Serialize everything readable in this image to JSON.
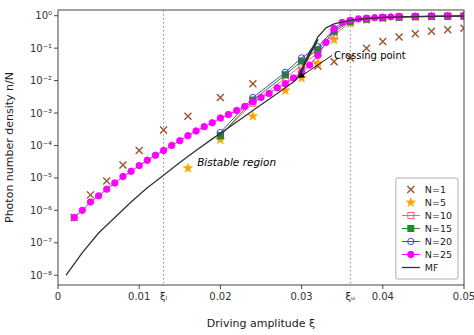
{
  "chart_data": {
    "type": "line",
    "xlabel": "Driving amplitude ξ",
    "ylabel": "Photon number density n/N",
    "xlim": [
      0,
      0.05
    ],
    "ylim": [
      5e-09,
      1.5
    ],
    "xticks": [
      0,
      0.01,
      0.02,
      0.03,
      0.04,
      0.05
    ],
    "yticks": [
      {
        "value": 1e-08,
        "label": "10⁻⁸"
      },
      {
        "value": 1e-07,
        "label": "10⁻⁷"
      },
      {
        "value": 1e-06,
        "label": "10⁻⁶"
      },
      {
        "value": 1e-05,
        "label": "10⁻⁵"
      },
      {
        "value": 0.0001,
        "label": "10⁻⁴"
      },
      {
        "value": 0.001,
        "label": "10⁻³"
      },
      {
        "value": 0.01,
        "label": "10⁻²"
      },
      {
        "value": 0.1,
        "label": "10⁻¹"
      },
      {
        "value": 1,
        "label": "10⁰"
      }
    ],
    "log": "y",
    "grid": false,
    "legend": "lower right",
    "series": [
      {
        "name": "N=1",
        "color": "#A0522D",
        "marker": "x",
        "line_style": "none",
        "x": [
          0.002,
          0.004,
          0.006,
          0.008,
          0.01,
          0.013,
          0.016,
          0.02,
          0.024,
          0.028,
          0.03,
          0.032,
          0.034,
          0.036,
          0.038,
          0.04,
          0.042,
          0.044,
          0.046,
          0.048,
          0.05
        ],
        "values": [
          6e-07,
          3e-06,
          8e-06,
          2.5e-05,
          7e-05,
          0.0003,
          0.0008,
          0.003,
          0.008,
          0.015,
          0.02,
          0.028,
          0.038,
          0.05,
          0.1,
          0.16,
          0.22,
          0.28,
          0.33,
          0.37,
          0.41
        ]
      },
      {
        "name": "N=5",
        "color": "#FFA500",
        "marker": "star",
        "line_style": "none",
        "x": [
          0.016,
          0.02,
          0.024,
          0.028,
          0.03,
          0.032,
          0.034,
          0.036,
          0.038,
          0.04,
          0.042,
          0.044,
          0.046,
          0.048,
          0.05
        ],
        "values": [
          2e-05,
          0.00015,
          0.0008,
          0.005,
          0.012,
          0.035,
          0.18,
          0.58,
          0.74,
          0.83,
          0.89,
          0.92,
          0.94,
          0.96,
          0.97
        ]
      },
      {
        "name": "N=10",
        "color": "#FF6666",
        "marker": "square-open",
        "line_style": "solid",
        "x": [
          0.02,
          0.024,
          0.028,
          0.03,
          0.032,
          0.034,
          0.036,
          0.038,
          0.04,
          0.042,
          0.044,
          0.046,
          0.048,
          0.05
        ],
        "values": [
          0.0002,
          0.002,
          0.012,
          0.03,
          0.07,
          0.25,
          0.63,
          0.77,
          0.86,
          0.91,
          0.93,
          0.95,
          0.97,
          0.98
        ]
      },
      {
        "name": "N=15",
        "color": "#228B22",
        "marker": "square",
        "line_style": "solid",
        "x": [
          0.02,
          0.024,
          0.028,
          0.03,
          0.032,
          0.034,
          0.036,
          0.038,
          0.04,
          0.042,
          0.044,
          0.046,
          0.048,
          0.05
        ],
        "values": [
          0.0002,
          0.0025,
          0.015,
          0.04,
          0.09,
          0.32,
          0.67,
          0.79,
          0.87,
          0.91,
          0.94,
          0.96,
          0.97,
          0.98
        ]
      },
      {
        "name": "N=20",
        "color": "#4444CC",
        "marker": "circle-open",
        "line_style": "solid",
        "x": [
          0.02,
          0.024,
          0.028,
          0.03,
          0.032,
          0.034,
          0.036,
          0.038,
          0.04,
          0.042,
          0.044,
          0.046,
          0.048,
          0.05
        ],
        "values": [
          0.00025,
          0.003,
          0.018,
          0.05,
          0.11,
          0.38,
          0.7,
          0.81,
          0.88,
          0.92,
          0.94,
          0.96,
          0.97,
          0.98
        ]
      },
      {
        "name": "N=25",
        "color": "#FF00FF",
        "marker": "circle",
        "line_style": "solid",
        "x": [
          0.002,
          0.003,
          0.004,
          0.005,
          0.006,
          0.007,
          0.008,
          0.009,
          0.01,
          0.011,
          0.012,
          0.013,
          0.014,
          0.015,
          0.016,
          0.017,
          0.018,
          0.019,
          0.02,
          0.021,
          0.022,
          0.023,
          0.024,
          0.025,
          0.026,
          0.027,
          0.028,
          0.029,
          0.03,
          0.031,
          0.032,
          0.033,
          0.034,
          0.035,
          0.036,
          0.037,
          0.038,
          0.039,
          0.04,
          0.041,
          0.042,
          0.044,
          0.046,
          0.048,
          0.05
        ],
        "values": [
          6e-07,
          1e-06,
          1.8e-06,
          2.8e-06,
          4.5e-06,
          7e-06,
          1.1e-05,
          1.6e-05,
          2.4e-05,
          3.5e-05,
          5e-05,
          7e-05,
          0.0001,
          0.00014,
          0.0002,
          0.00028,
          0.00038,
          0.0005,
          0.0007,
          0.0009,
          0.0012,
          0.0016,
          0.0022,
          0.003,
          0.004,
          0.006,
          0.008,
          0.012,
          0.018,
          0.03,
          0.06,
          0.15,
          0.4,
          0.62,
          0.72,
          0.8,
          0.84,
          0.87,
          0.9,
          0.92,
          0.93,
          0.95,
          0.96,
          0.97,
          0.98
        ]
      },
      {
        "name": "MF",
        "color": "#333333",
        "marker": "none",
        "line_style": "solid",
        "x": [
          0.001,
          0.003,
          0.005,
          0.007,
          0.009,
          0.011,
          0.013,
          0.015,
          0.017,
          0.019,
          0.021,
          0.023,
          0.025,
          0.027,
          0.029,
          0.0295,
          0.0295,
          0.031,
          0.032,
          0.0295,
          0.0295,
          0.03,
          0.031,
          0.032,
          0.033,
          0.034,
          0.035,
          0.036,
          0.038,
          0.04,
          0.043,
          0.047,
          0.05
        ],
        "values": [
          1e-08,
          5e-08,
          2e-07,
          6e-07,
          1.8e-06,
          5e-06,
          1.2e-05,
          3e-05,
          7e-05,
          0.00016,
          0.00035,
          0.0008,
          0.0018,
          0.004,
          0.009,
          0.012,
          0.012,
          0.08,
          0.18,
          0.012,
          0.012,
          0.018,
          0.07,
          0.22,
          0.42,
          0.56,
          0.65,
          0.72,
          0.82,
          0.88,
          0.93,
          0.96,
          0.98
        ]
      }
    ],
    "vlines": [
      {
        "x": 0.013,
        "label": "ξₗ"
      },
      {
        "x": 0.036,
        "label": "ξᵤ"
      }
    ],
    "annotations": [
      {
        "text": "Bistable region",
        "x": 0.022,
        "y": 3e-05
      },
      {
        "text": "Crossing point",
        "x": 0.0296,
        "y": 0.012,
        "text_x": 0.034,
        "text_y": 0.06
      }
    ]
  }
}
